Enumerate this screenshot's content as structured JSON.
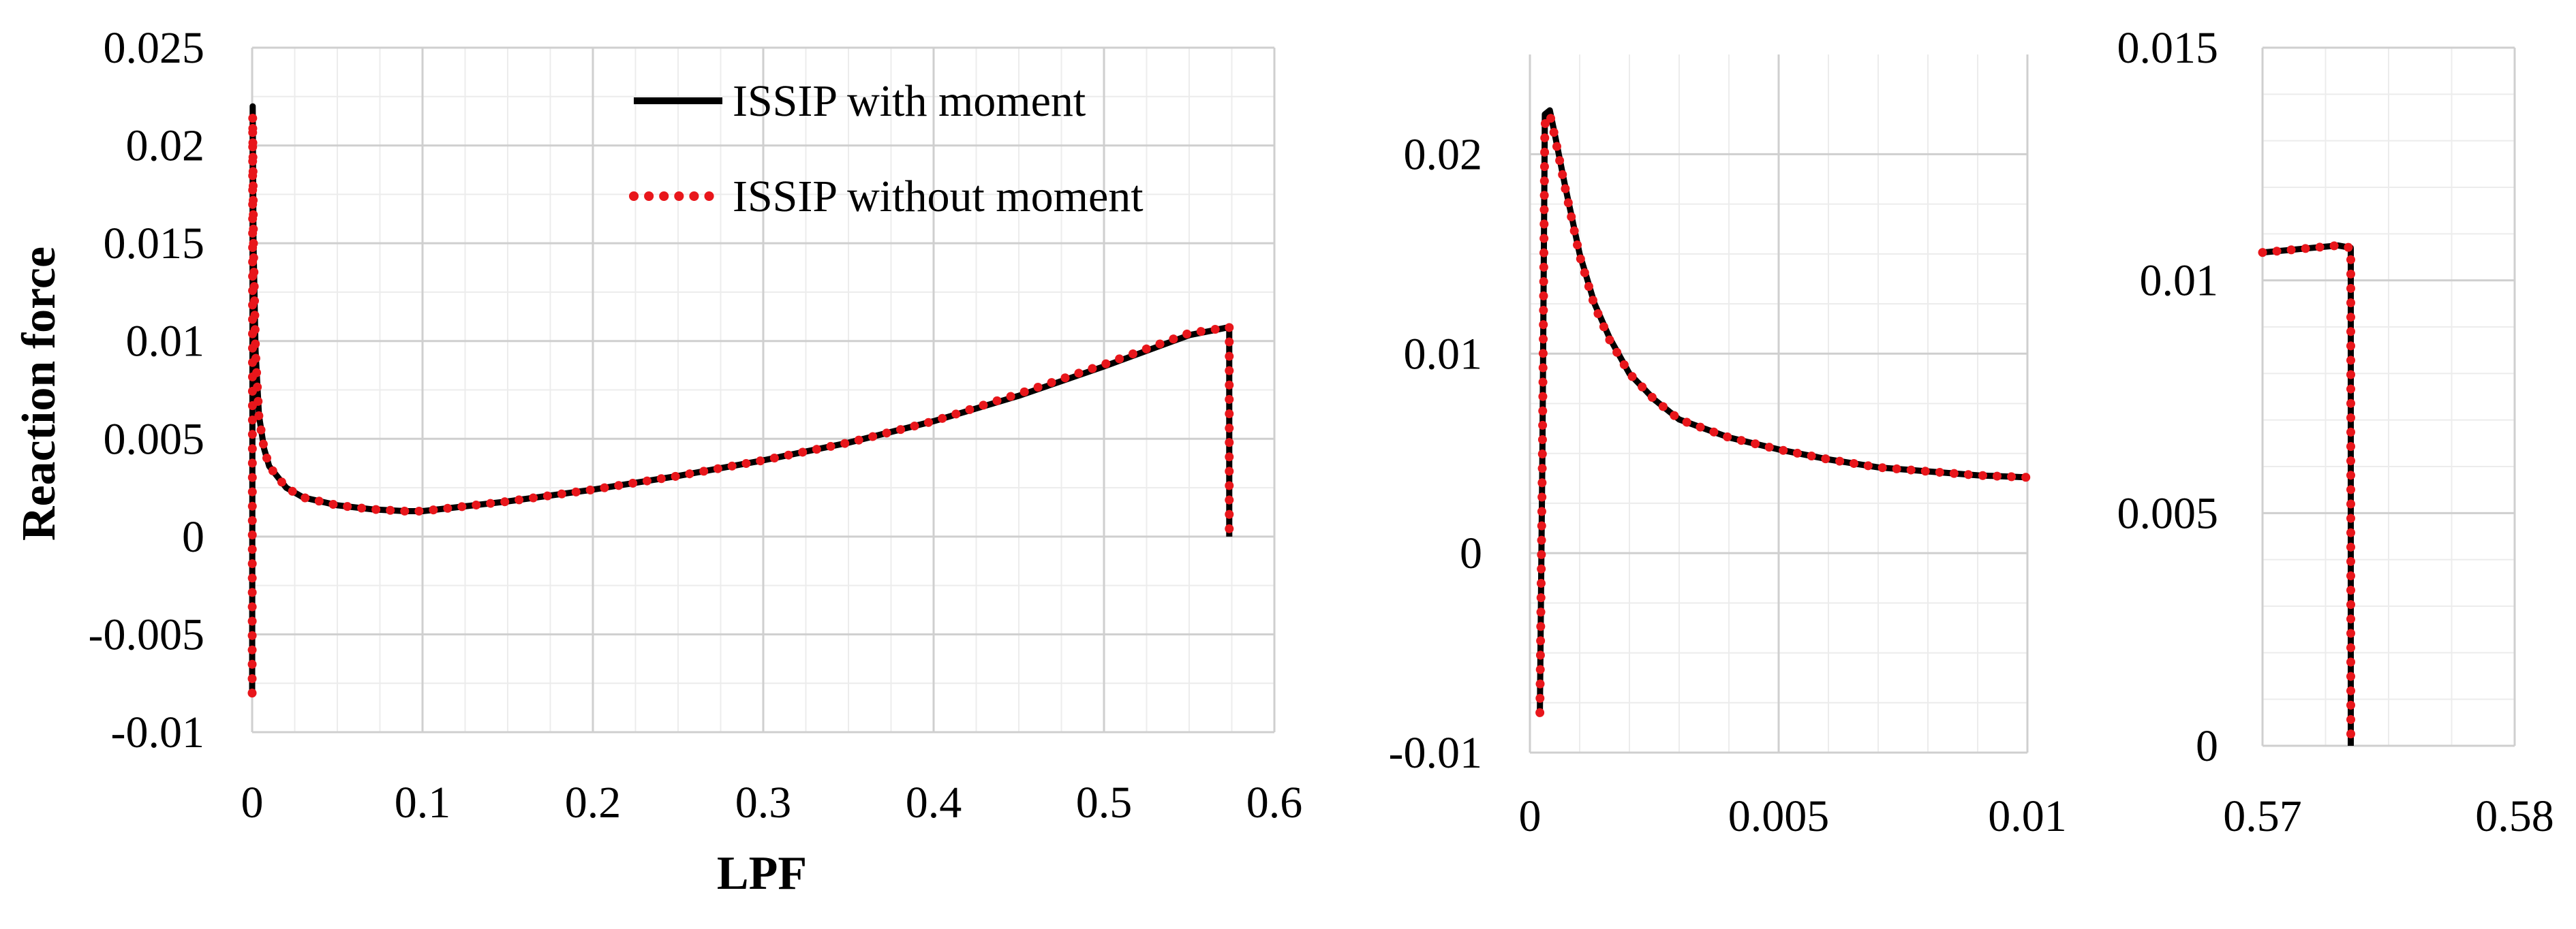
{
  "colors": {
    "with_moment": "#000000",
    "without_moment": "#e8161b",
    "grid_major": "#cfcfcf",
    "grid_minor": "#ececec"
  },
  "chart_data": [
    {
      "type": "line",
      "title": "",
      "xlabel": "LPF",
      "ylabel": "Reaction force",
      "xlim": [
        0,
        0.6
      ],
      "ylim": [
        -0.01,
        0.025
      ],
      "xticks": [
        "0",
        "0.1",
        "0.2",
        "0.3",
        "0.4",
        "0.5",
        "0.6"
      ],
      "yticks": [
        "-0.01",
        "-0.005",
        "0",
        "0.005",
        "0.01",
        "0.015",
        "0.02",
        "0.025"
      ],
      "grid": true,
      "legend_position": "top-right",
      "series": [
        {
          "name": "ISSIP with moment",
          "style": "solid",
          "x": [
            0,
            0.0003,
            0.0008,
            0.002,
            0.004,
            0.007,
            0.01,
            0.02,
            0.03,
            0.05,
            0.07,
            0.09,
            0.1,
            0.15,
            0.2,
            0.25,
            0.3,
            0.35,
            0.4,
            0.45,
            0.5,
            0.55,
            0.573,
            0.5735,
            0.5735
          ],
          "y": [
            -0.008,
            0.022,
            0.015,
            0.0095,
            0.0062,
            0.0045,
            0.0036,
            0.0025,
            0.002,
            0.0016,
            0.0014,
            0.0013,
            0.0013,
            0.0018,
            0.0024,
            0.0031,
            0.0039,
            0.0048,
            0.0059,
            0.0072,
            0.0087,
            0.0103,
            0.0107,
            0.0107,
            0
          ]
        },
        {
          "name": "ISSIP without moment",
          "style": "dotted",
          "x": [
            0,
            0.0003,
            0.0008,
            0.002,
            0.004,
            0.007,
            0.01,
            0.02,
            0.03,
            0.05,
            0.07,
            0.09,
            0.1,
            0.15,
            0.2,
            0.25,
            0.3,
            0.35,
            0.4,
            0.45,
            0.5,
            0.55,
            0.573,
            0.5735,
            0.5735
          ],
          "y": [
            -0.008,
            0.0215,
            0.0148,
            0.0094,
            0.0061,
            0.0045,
            0.0036,
            0.0025,
            0.002,
            0.0016,
            0.0014,
            0.0013,
            0.0013,
            0.0018,
            0.0024,
            0.0031,
            0.0039,
            0.0048,
            0.0059,
            0.0073,
            0.0088,
            0.0104,
            0.0107,
            0.0107,
            0
          ]
        }
      ]
    },
    {
      "type": "line",
      "title": "",
      "xlabel": "",
      "ylabel": "",
      "xlim": [
        0,
        0.01
      ],
      "ylim": [
        -0.01,
        0.025
      ],
      "xticks": [
        "0",
        "0.005",
        "0.01"
      ],
      "yticks": [
        "-0.01",
        "0",
        "0.01",
        "0.02"
      ],
      "grid": true,
      "series": [
        {
          "name": "ISSIP with moment",
          "style": "solid",
          "x": [
            0.0002,
            0.00025,
            0.0003,
            0.0004,
            0.0005,
            0.0007,
            0.001,
            0.0013,
            0.0016,
            0.002,
            0.0025,
            0.003,
            0.004,
            0.005,
            0.006,
            0.007,
            0.008,
            0.009,
            0.01
          ],
          "y": [
            -0.008,
            0.005,
            0.022,
            0.0222,
            0.021,
            0.0185,
            0.015,
            0.0125,
            0.0108,
            0.009,
            0.0077,
            0.0067,
            0.0058,
            0.0052,
            0.0047,
            0.0043,
            0.0041,
            0.0039,
            0.0038
          ]
        },
        {
          "name": "ISSIP without moment",
          "style": "dotted",
          "x": [
            0.0002,
            0.00025,
            0.0003,
            0.0004,
            0.0005,
            0.0007,
            0.001,
            0.0013,
            0.0016,
            0.002,
            0.0025,
            0.003,
            0.004,
            0.005,
            0.006,
            0.007,
            0.008,
            0.009,
            0.01
          ],
          "y": [
            -0.008,
            0.005,
            0.0215,
            0.022,
            0.0209,
            0.0184,
            0.0149,
            0.0124,
            0.0107,
            0.009,
            0.0077,
            0.0067,
            0.0058,
            0.0052,
            0.0047,
            0.0043,
            0.0041,
            0.0039,
            0.0038
          ]
        }
      ]
    },
    {
      "type": "line",
      "title": "",
      "xlabel": "",
      "ylabel": "",
      "xlim": [
        0.57,
        0.58
      ],
      "ylim": [
        0,
        0.015
      ],
      "xticks": [
        "0.57",
        "0.58"
      ],
      "yticks": [
        "0",
        "0.005",
        "0.01",
        "0.015"
      ],
      "grid": true,
      "series": [
        {
          "name": "ISSIP with moment",
          "style": "solid",
          "x": [
            0.57,
            0.571,
            0.572,
            0.573,
            0.5735,
            0.5735
          ],
          "y": [
            0.0106,
            0.01065,
            0.0107,
            0.01075,
            0.0107,
            0
          ]
        },
        {
          "name": "ISSIP without moment",
          "style": "dotted",
          "x": [
            0.57,
            0.571,
            0.572,
            0.573,
            0.5735,
            0.5735
          ],
          "y": [
            0.0106,
            0.01065,
            0.0107,
            0.01075,
            0.0107,
            0
          ]
        }
      ]
    }
  ]
}
